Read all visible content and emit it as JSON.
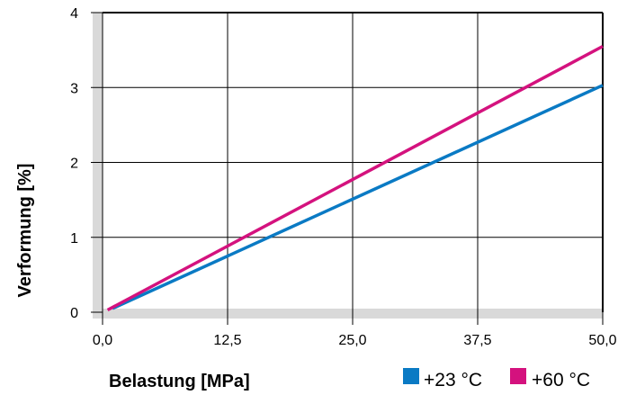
{
  "chart_data": {
    "type": "line",
    "title": "",
    "xlabel": "Belastung [MPa]",
    "ylabel": "Verformung [%]",
    "xlim": [
      0,
      50
    ],
    "ylim": [
      0,
      4
    ],
    "x_ticks": [
      "0,0",
      "12,5",
      "25,0",
      "37,5",
      "50,0"
    ],
    "y_ticks": [
      "0",
      "1",
      "2",
      "3",
      "4"
    ],
    "grid": true,
    "legend_position": "bottom-right",
    "series": [
      {
        "name": "+23 °C",
        "color": "#0a7ac4",
        "x": [
          1,
          50
        ],
        "y": [
          0.05,
          3.03
        ]
      },
      {
        "name": "+60 °C",
        "color": "#d4127e",
        "x": [
          0.5,
          50
        ],
        "y": [
          0.03,
          3.55
        ]
      }
    ]
  }
}
